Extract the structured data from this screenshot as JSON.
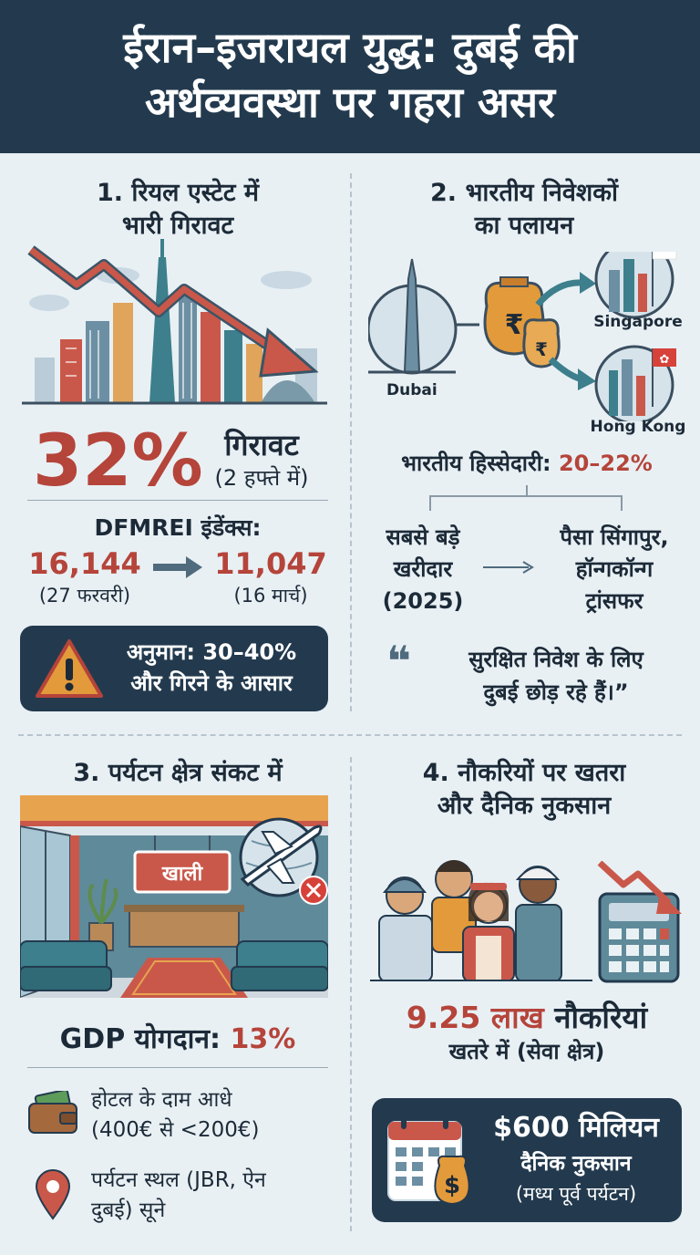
{
  "header": {
    "line1": "ईरान–इजरायल युद्ध: दुबई की",
    "line2": "अर्थव्यवस्था पर गहरा असर"
  },
  "s1": {
    "title1": "1. रियल एस्टेट में",
    "title2": "भारी गिरावट",
    "big_percent": "32%",
    "drop_label": "गिरावट",
    "drop_period": "(2 हफ्ते में)",
    "index_label": "DFMREI इंडेंक्स:",
    "from_value": "16,144",
    "from_date": "(27 फरवरी)",
    "to_value": "11,047",
    "to_date": "(16 मार्च)",
    "warning_line1": "अनुमान: 30–40%",
    "warning_line2": "और गिरने के आसार",
    "icons": [
      "falling-trend-arrow",
      "dubai-skyline",
      "warning-triangle-icon"
    ]
  },
  "s2": {
    "title1": "2. भारतीय निवेशकों",
    "title2": "का पलायन",
    "dubai_label": "Dubai",
    "singapore_label": "Singapore",
    "hongkong_label": "Hong Kong",
    "share_label": "भारतीय हिस्सेदारी:",
    "share_value": "20–22%",
    "left_line1": "सबसे बड़े",
    "left_line2": "खरीदार",
    "left_line3": "(2025)",
    "right_line1": "पैसा सिंगापुर,",
    "right_line2": "हॉन्गकॉन्ग",
    "right_line3": "ट्रांसफर",
    "quote_mark": "❝",
    "quote_line1": "सुरक्षित निवेश के लिए",
    "quote_line2": "दुबई छोड़ रहे हैं।”",
    "icons": [
      "burj-khalifa-icon",
      "rupee-money-bag-icon",
      "singapore-flag-icon",
      "hong-kong-flag-icon"
    ]
  },
  "s3": {
    "title": "3. पर्यटन क्षेत्र संकट में",
    "sign_text": "खाली",
    "gdp_label": "GDP योगदान:",
    "gdp_value": "13%",
    "hotel_line1": "होटल के दाम आधे",
    "hotel_line2": "(400€ से <200€)",
    "place_line1": "पर्यटन स्थल (JBR, ऐन",
    "place_line2": "दुबई) सूने",
    "icons": [
      "empty-hotel-lobby",
      "airplane-cancelled-icon",
      "wallet-icon",
      "location-pin-icon"
    ]
  },
  "s4": {
    "title1": "4. नौकरियों पर खतरा",
    "title2": "और दैनिक नुकसान",
    "jobs_value": "9.25 लाख",
    "jobs_label": "नौकरियां",
    "jobs_sub": "खतरे में (सेवा क्षेत्र)",
    "loss_value": "$600 मिलियन",
    "loss_line2": "दैनिक नुकसान",
    "loss_line3": "(मध्य पूर्व पर्यटन)",
    "icons": [
      "workers-group-icon",
      "calculator-icon",
      "falling-arrow-icon",
      "calendar-icon",
      "dollar-bag-icon"
    ]
  },
  "colors": {
    "navy": "#233a4e",
    "accent_red": "#b5443a",
    "background": "#e8f0f4",
    "teal": "#3d7f8c",
    "orange": "#e39a3b"
  }
}
